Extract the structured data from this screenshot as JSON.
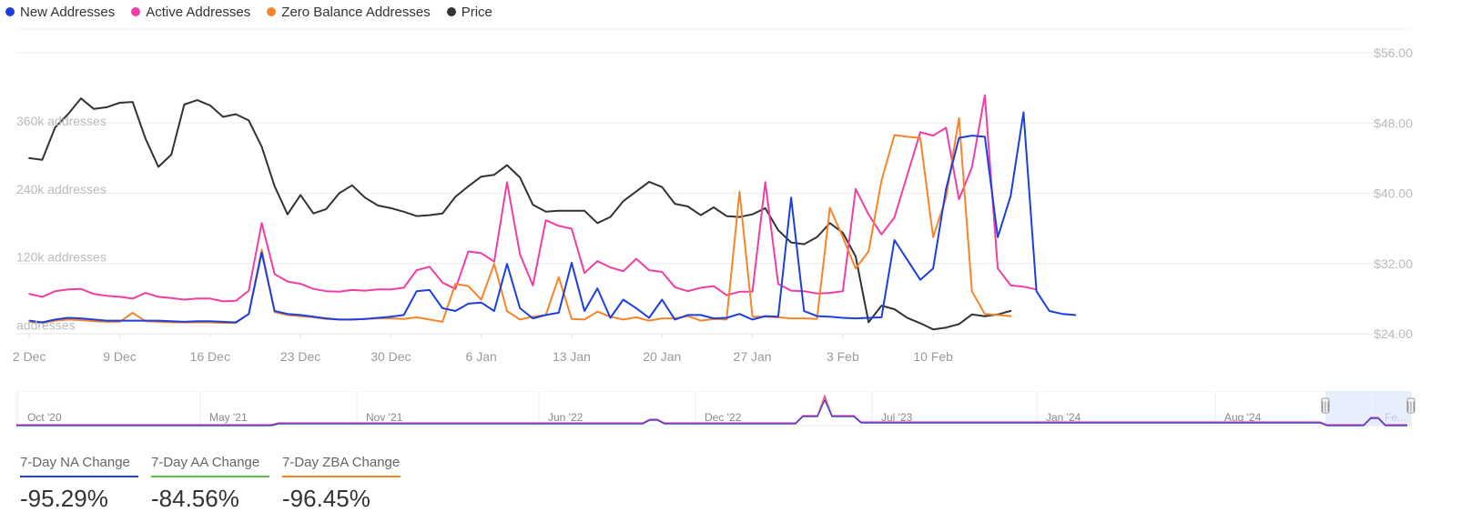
{
  "legend": [
    {
      "label": "New Addresses",
      "color": "#1d3fe0"
    },
    {
      "label": "Active Addresses",
      "color": "#f03ea6"
    },
    {
      "label": "Zero Balance Addresses",
      "color": "#f5852b"
    },
    {
      "label": "Price",
      "color": "#333333"
    }
  ],
  "chart_data": {
    "type": "line",
    "x_tick_labels": [
      "2 Dec",
      "9 Dec",
      "16 Dec",
      "23 Dec",
      "30 Dec",
      "6 Jan",
      "13 Jan",
      "20 Jan",
      "27 Jan",
      "3 Feb",
      "10 Feb"
    ],
    "left_axis": {
      "tick_labels": [
        "addresses",
        "120k addresses",
        "240k addresses",
        "360k addresses"
      ],
      "ticks": [
        0,
        120000,
        240000,
        360000
      ],
      "ylim": [
        -15000,
        480000
      ]
    },
    "right_axis": {
      "tick_labels": [
        "$24.00",
        "$32.00",
        "$40.00",
        "$48.00",
        "$56.00"
      ],
      "ticks": [
        24,
        32,
        40,
        48,
        56
      ],
      "ylim": [
        24,
        56
      ]
    },
    "x_range": [
      -1,
      107
    ],
    "grid": true,
    "series": [
      {
        "name": "Active Addresses",
        "axis": "left",
        "color": "#f03ea6",
        "values": [
          55000,
          50000,
          60000,
          63000,
          64000,
          55000,
          52000,
          50000,
          47000,
          57000,
          50000,
          48000,
          45000,
          47000,
          47000,
          42000,
          43000,
          61000,
          180000,
          90000,
          77000,
          73000,
          64000,
          60000,
          59000,
          62000,
          61000,
          63000,
          63000,
          66000,
          97000,
          103000,
          75000,
          64000,
          130000,
          127000,
          112000,
          252000,
          125000,
          70000,
          185000,
          175000,
          170000,
          92000,
          113000,
          102000,
          95000,
          117000,
          97000,
          94000,
          67000,
          60000,
          66000,
          69000,
          53000,
          59000,
          59000,
          252000,
          73000,
          61000,
          60000,
          56000,
          57000,
          60000,
          240000,
          195000,
          160000,
          190000,
          265000,
          340000,
          334000,
          348000,
          222000,
          278000,
          405000,
          100000,
          70000,
          68000,
          63000
        ]
      },
      {
        "name": "New Addresses",
        "axis": "left",
        "color": "#1d3fe0",
        "values": [
          8000,
          5000,
          10000,
          13000,
          12000,
          10000,
          8000,
          8000,
          8000,
          8000,
          8000,
          7000,
          6000,
          7000,
          7000,
          6000,
          5000,
          20000,
          128000,
          25000,
          20000,
          18000,
          15000,
          12000,
          10000,
          10000,
          11000,
          13000,
          15000,
          18000,
          60000,
          62000,
          30000,
          25000,
          38000,
          40000,
          25000,
          108000,
          30000,
          12000,
          18000,
          22000,
          110000,
          25000,
          65000,
          13000,
          45000,
          30000,
          13000,
          45000,
          10000,
          18000,
          18000,
          12000,
          13000,
          20000,
          10000,
          16000,
          15000,
          225000,
          25000,
          16000,
          15000,
          13000,
          12000,
          13000,
          14000,
          150000,
          115000,
          80000,
          100000,
          240000,
          330000,
          334000,
          332000,
          155000,
          228000,
          375000,
          60000,
          25000,
          20000,
          18000
        ]
      },
      {
        "name": "Zero Balance Addresses",
        "axis": "left",
        "color": "#f5852b",
        "values": [
          6000,
          4000,
          8000,
          10000,
          9000,
          7000,
          6000,
          6000,
          22000,
          7000,
          6000,
          5000,
          5000,
          5000,
          5000,
          4000,
          4000,
          20000,
          133000,
          23000,
          18000,
          16000,
          14000,
          11000,
          10000,
          10000,
          11000,
          12000,
          12000,
          11000,
          14000,
          10000,
          6000,
          73000,
          69000,
          45000,
          108000,
          25000,
          10000,
          15000,
          18000,
          85000,
          11000,
          10000,
          24000,
          15000,
          10000,
          14000,
          8000,
          12000,
          12000,
          16000,
          8000,
          11000,
          10000,
          235000,
          15000,
          15000,
          14000,
          12000,
          12000,
          11000,
          207000,
          155000,
          100000,
          130000,
          255000,
          335000,
          332000,
          330000,
          155000,
          225000,
          365000,
          60000,
          20000,
          18000,
          16000
        ]
      },
      {
        "name": "Price",
        "axis": "right",
        "color": "#333333",
        "values": [
          44.0,
          43.8,
          47.5,
          49.0,
          50.8,
          49.6,
          49.8,
          50.3,
          50.4,
          46.2,
          43.0,
          44.4,
          50.1,
          50.6,
          50.0,
          48.7,
          49.0,
          48.3,
          45.3,
          40.8,
          37.6,
          39.8,
          37.7,
          38.2,
          40.0,
          40.9,
          39.5,
          38.6,
          38.3,
          37.9,
          37.4,
          37.5,
          37.7,
          39.6,
          40.8,
          41.9,
          42.1,
          43.2,
          41.8,
          38.7,
          37.9,
          38.0,
          38.0,
          38.0,
          36.6,
          37.3,
          39.1,
          40.2,
          41.3,
          40.7,
          38.8,
          38.5,
          37.5,
          38.4,
          37.4,
          37.3,
          37.6,
          38.3,
          35.8,
          34.4,
          34.2,
          35.0,
          36.6,
          35.5,
          32.8,
          25.3,
          27.2,
          26.8,
          25.8,
          25.2,
          24.5,
          24.7,
          25.1,
          26.2,
          26.0,
          26.2,
          26.6
        ]
      }
    ]
  },
  "navigator": {
    "labels": [
      "Oct '20",
      "May '21",
      "Nov '21",
      "Jun '22",
      "Dec '22",
      "Jul '23",
      "Jan '24",
      "Aug '24",
      "Fe..."
    ],
    "handle_symbol": "|||"
  },
  "stats": [
    {
      "label": "7-Day NA Change",
      "value": "-95.29%",
      "color": "#1d3fe0"
    },
    {
      "label": "7-Day AA Change",
      "value": "-84.56%",
      "color": "#5cc04a"
    },
    {
      "label": "7-Day ZBA Change",
      "value": "-96.45%",
      "color": "#f5852b"
    }
  ]
}
